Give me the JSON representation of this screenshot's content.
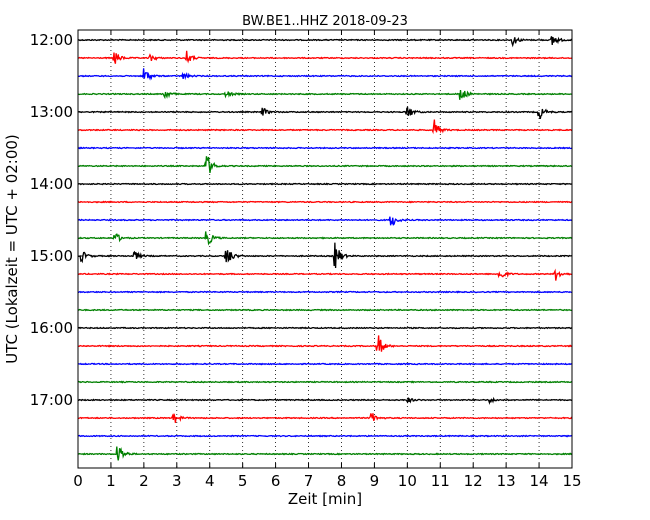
{
  "chart_data": {
    "type": "line",
    "title": "BW.BE1..HHZ 2018-09-23",
    "xlabel": "Zeit  [min]",
    "ylabel": "UTC (Lokalzeit = UTC + 02:00)",
    "xlim": [
      0,
      15
    ],
    "x_ticks": [
      "0",
      "1",
      "2",
      "3",
      "4",
      "5",
      "6",
      "7",
      "8",
      "9",
      "10",
      "11",
      "12",
      "13",
      "14",
      "15"
    ],
    "y_ticks": [
      "12:00",
      "13:00",
      "14:00",
      "15:00",
      "16:00",
      "17:00"
    ],
    "grid": "vertical dotted",
    "trace_interval_min": 15,
    "trace_colors": [
      "#000000",
      "#ff0000",
      "#0000ff",
      "#008000"
    ],
    "series": [
      {
        "start": "12:00",
        "events": [
          {
            "t": 13.2,
            "a": 0.6
          },
          {
            "t": 14.4,
            "a": 0.8
          }
        ]
      },
      {
        "start": "12:15",
        "events": [
          {
            "t": 1.1,
            "a": 0.9
          },
          {
            "t": 2.2,
            "a": 0.4
          },
          {
            "t": 3.3,
            "a": 0.7
          }
        ]
      },
      {
        "start": "12:30",
        "events": [
          {
            "t": 2.0,
            "a": 1.0
          },
          {
            "t": 3.2,
            "a": 0.4
          }
        ]
      },
      {
        "start": "12:45",
        "events": [
          {
            "t": 2.6,
            "a": 0.7
          },
          {
            "t": 4.5,
            "a": 0.4
          },
          {
            "t": 11.6,
            "a": 1.0
          }
        ]
      },
      {
        "start": "13:00",
        "events": [
          {
            "t": 5.6,
            "a": 0.5
          },
          {
            "t": 10.0,
            "a": 0.8
          },
          {
            "t": 14.0,
            "a": 0.9
          }
        ]
      },
      {
        "start": "13:15",
        "events": [
          {
            "t": 10.8,
            "a": 1.2
          }
        ]
      },
      {
        "start": "13:30",
        "events": []
      },
      {
        "start": "13:45",
        "events": [
          {
            "t": 3.9,
            "a": 1.6
          }
        ]
      },
      {
        "start": "14:00",
        "events": []
      },
      {
        "start": "14:15",
        "events": []
      },
      {
        "start": "14:30",
        "events": [
          {
            "t": 9.5,
            "a": 0.9
          }
        ]
      },
      {
        "start": "14:45",
        "events": [
          {
            "t": 1.1,
            "a": 0.8
          },
          {
            "t": 3.9,
            "a": 1.1
          }
        ]
      },
      {
        "start": "15:00",
        "events": [
          {
            "t": 0.1,
            "a": 0.7
          },
          {
            "t": 1.7,
            "a": 0.6
          },
          {
            "t": 4.5,
            "a": 1.4
          },
          {
            "t": 7.8,
            "a": 1.7
          }
        ]
      },
      {
        "start": "15:15",
        "events": [
          {
            "t": 12.8,
            "a": 0.8
          },
          {
            "t": 14.5,
            "a": 0.7
          }
        ]
      },
      {
        "start": "15:30",
        "events": []
      },
      {
        "start": "15:45",
        "events": []
      },
      {
        "start": "16:00",
        "events": []
      },
      {
        "start": "16:15",
        "events": [
          {
            "t": 9.1,
            "a": 1.5
          }
        ]
      },
      {
        "start": "16:30",
        "events": []
      },
      {
        "start": "16:45",
        "events": []
      },
      {
        "start": "17:00",
        "events": [
          {
            "t": 10.0,
            "a": 0.3
          },
          {
            "t": 12.5,
            "a": 0.3
          }
        ]
      },
      {
        "start": "17:15",
        "events": [
          {
            "t": 2.9,
            "a": 0.7
          },
          {
            "t": 8.9,
            "a": 0.7
          }
        ]
      },
      {
        "start": "17:30",
        "events": []
      },
      {
        "start": "17:45",
        "events": [
          {
            "t": 1.2,
            "a": 1.4
          }
        ]
      }
    ]
  }
}
